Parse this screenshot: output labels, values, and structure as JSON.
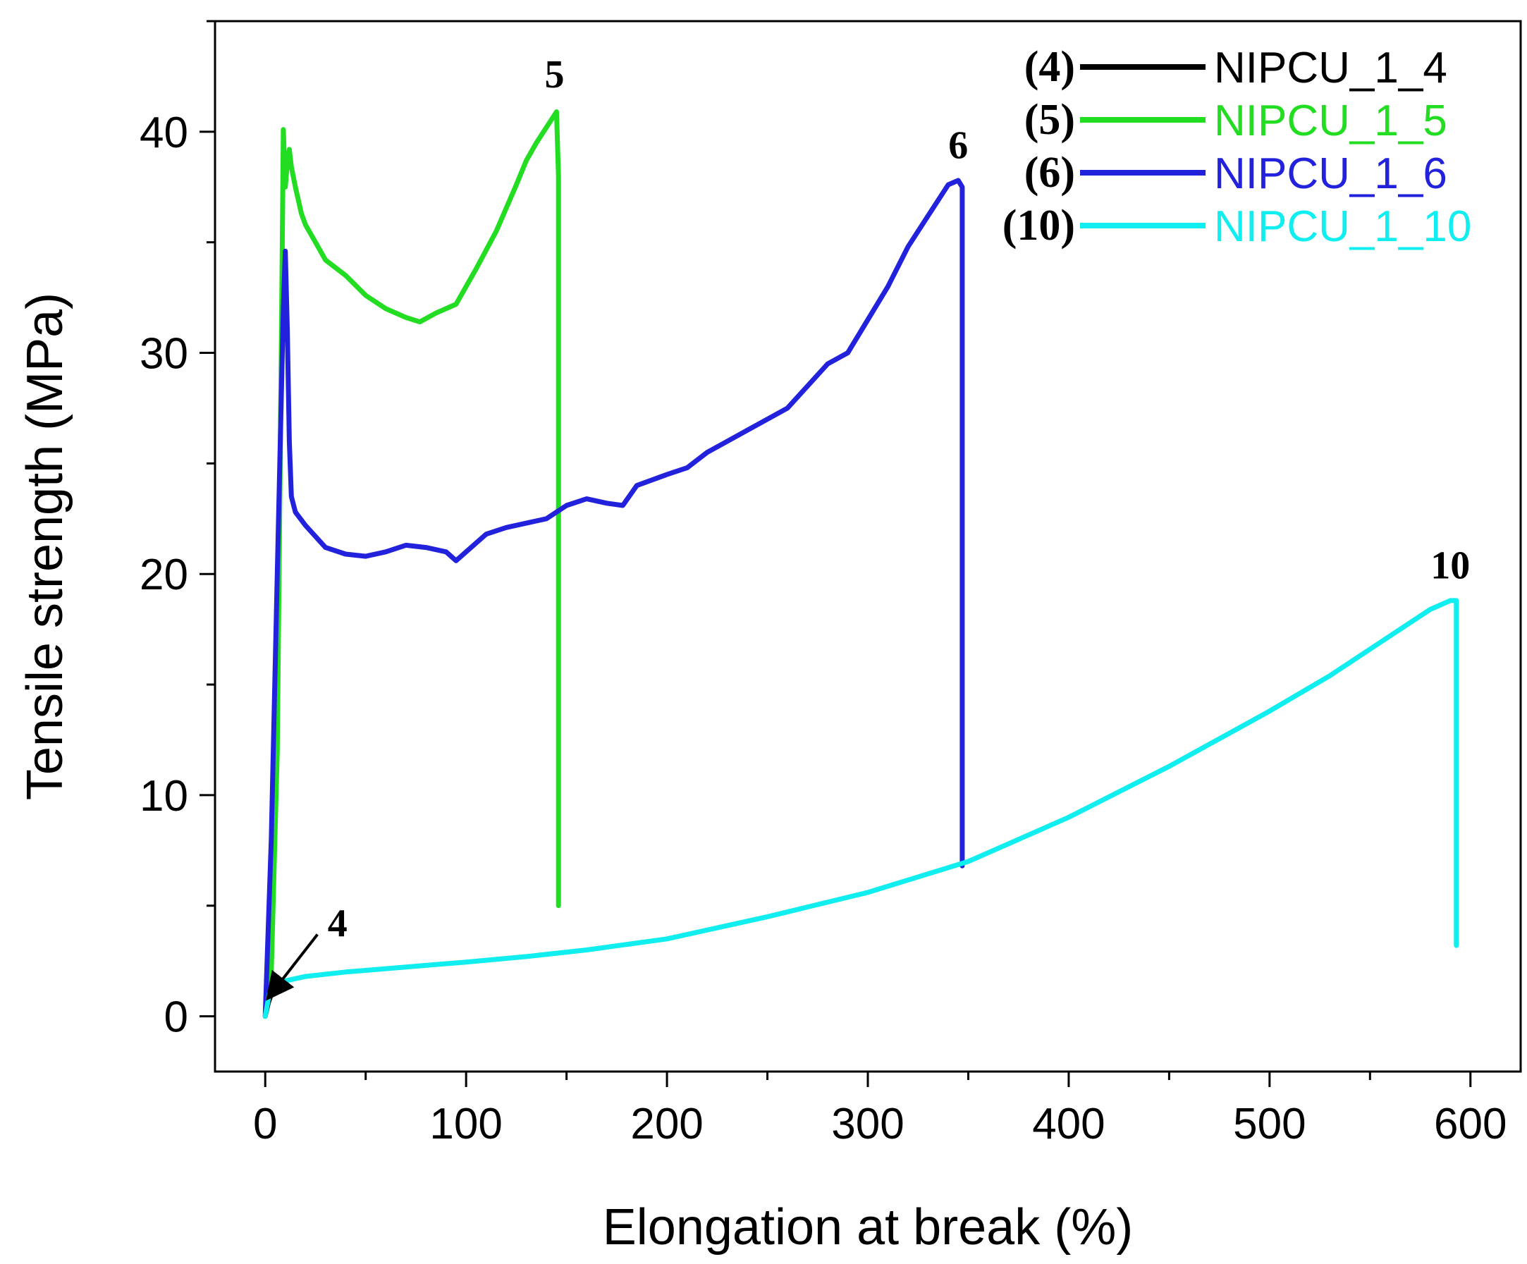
{
  "chart_data": {
    "type": "line",
    "xlabel": "Elongation at break (%)",
    "ylabel": "Tensile strength (MPa)",
    "xlim": [
      -25,
      625
    ],
    "ylim": [
      -2.5,
      45
    ],
    "xticks": [
      0,
      100,
      200,
      300,
      400,
      500,
      600
    ],
    "yticks": [
      0,
      10,
      20,
      30,
      40
    ],
    "legend_position": "top-right",
    "series": [
      {
        "id": "4",
        "name": "NIPCU_1_4",
        "legend_prefix": "(4)",
        "color": "#000000",
        "x": [
          0,
          1.5,
          3
        ],
        "y": [
          0,
          0.6,
          1.0
        ]
      },
      {
        "id": "5",
        "name": "NIPCU_1_5",
        "legend_prefix": "(5)",
        "color": "#22dd22",
        "x": [
          0,
          3,
          6,
          8,
          9,
          10,
          11,
          12,
          13,
          15,
          18,
          20,
          25,
          30,
          40,
          50,
          60,
          70,
          77,
          85,
          95,
          105,
          115,
          125,
          130,
          135,
          140,
          145,
          146,
          146
        ],
        "y": [
          0,
          2,
          12,
          30,
          40.1,
          37.5,
          38.6,
          39.2,
          38.4,
          37.5,
          36.3,
          35.8,
          35.0,
          34.2,
          33.5,
          32.6,
          32.0,
          31.6,
          31.4,
          31.8,
          32.2,
          33.8,
          35.5,
          37.6,
          38.7,
          39.5,
          40.2,
          40.9,
          38,
          5.0
        ]
      },
      {
        "id": "6",
        "name": "NIPCU_1_6",
        "legend_prefix": "(6)",
        "color": "#2222dd",
        "x": [
          0,
          3,
          6,
          9,
          10,
          11,
          12,
          13,
          15,
          20,
          30,
          40,
          50,
          60,
          70,
          80,
          90,
          95,
          100,
          110,
          120,
          130,
          140,
          150,
          160,
          170,
          178,
          185,
          200,
          210,
          220,
          240,
          260,
          280,
          290,
          300,
          310,
          320,
          330,
          340,
          345,
          347,
          347
        ],
        "y": [
          0,
          8,
          20,
          32,
          34.6,
          31,
          26,
          23.5,
          22.8,
          22.2,
          21.2,
          20.9,
          20.8,
          21.0,
          21.3,
          21.2,
          21.0,
          20.6,
          21.0,
          21.8,
          22.1,
          22.3,
          22.5,
          23.1,
          23.4,
          23.2,
          23.1,
          24.0,
          24.5,
          24.8,
          25.5,
          26.5,
          27.5,
          29.5,
          30.0,
          31.5,
          33.0,
          34.8,
          36.2,
          37.6,
          37.8,
          37.5,
          6.8
        ]
      },
      {
        "id": "10",
        "name": "NIPCU_1_10",
        "legend_prefix": "(10)",
        "color": "#11eef0",
        "x": [
          0,
          2,
          5,
          10,
          20,
          40,
          60,
          80,
          100,
          130,
          160,
          200,
          250,
          300,
          350,
          400,
          450,
          500,
          530,
          560,
          580,
          590,
          593,
          593
        ],
        "y": [
          0,
          1.0,
          1.4,
          1.6,
          1.8,
          2.0,
          2.15,
          2.3,
          2.45,
          2.7,
          3.0,
          3.5,
          4.5,
          5.6,
          7.0,
          9.0,
          11.3,
          13.8,
          15.4,
          17.2,
          18.4,
          18.8,
          18.8,
          3.2
        ]
      }
    ],
    "annotations": [
      {
        "text": "5",
        "x": 144,
        "y": 42.0
      },
      {
        "text": "6",
        "x": 345,
        "y": 38.8
      },
      {
        "text": "10",
        "x": 590,
        "y": 19.8
      },
      {
        "text": "4",
        "x": 36,
        "y": 3.6,
        "arrow_to": [
          2,
          0.9
        ],
        "arrow_from": [
          26,
          3.7
        ]
      }
    ]
  }
}
